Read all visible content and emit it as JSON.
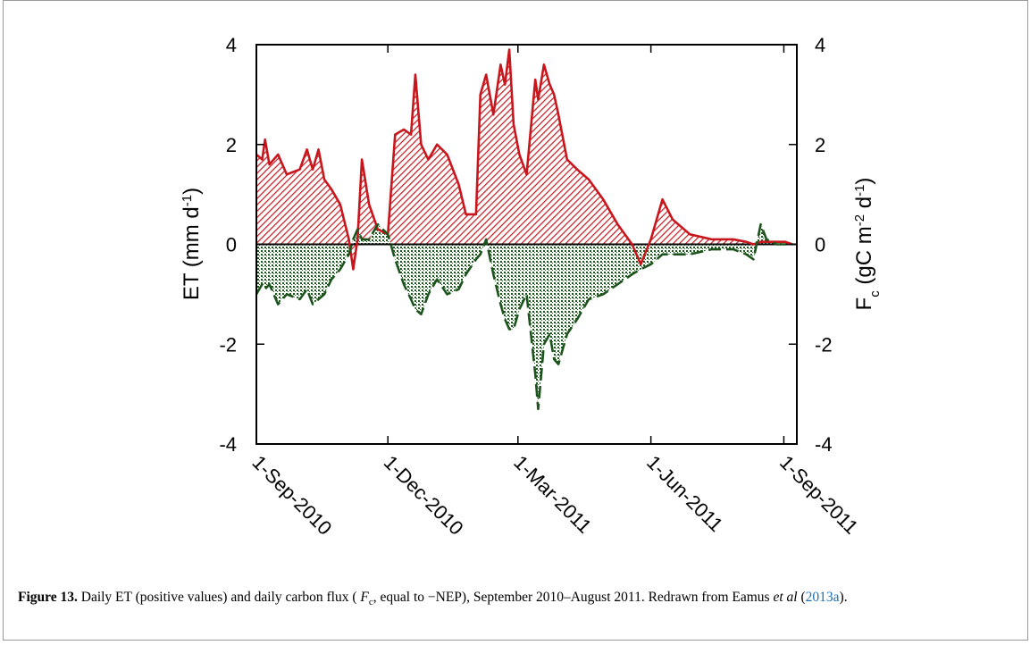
{
  "chart_data": {
    "type": "area-line",
    "y_label": [
      "ET (mm d",
      "-1",
      ")"
    ],
    "y2_label": [
      "F",
      "c",
      " (gC m",
      "-2",
      " d",
      "-1",
      ")"
    ],
    "x": [
      "2010-09-01",
      "2010-09-05",
      "2010-09-07",
      "2010-09-10",
      "2010-09-16",
      "2010-09-22",
      "2010-10-01",
      "2010-10-06",
      "2010-10-10",
      "2010-10-14",
      "2010-10-18",
      "2010-10-23",
      "2010-10-29",
      "2010-11-04",
      "2010-11-07",
      "2010-11-10",
      "2010-11-13",
      "2010-11-18",
      "2010-11-24",
      "2010-12-01",
      "2010-12-06",
      "2010-12-12",
      "2010-12-17",
      "2010-12-20",
      "2010-12-24",
      "2010-12-29",
      "2011-01-04",
      "2011-01-11",
      "2011-01-19",
      "2011-01-24",
      "2011-01-31",
      "2011-02-03",
      "2011-02-07",
      "2011-02-12",
      "2011-02-17",
      "2011-02-20",
      "2011-02-23",
      "2011-02-26",
      "2011-03-02",
      "2011-03-07",
      "2011-03-13",
      "2011-03-15",
      "2011-03-19",
      "2011-03-23",
      "2011-03-26",
      "2011-03-29",
      "2011-04-04",
      "2011-04-11",
      "2011-04-19",
      "2011-04-29",
      "2011-05-09",
      "2011-05-19",
      "2011-05-25",
      "2011-06-01",
      "2011-06-09",
      "2011-06-16",
      "2011-06-28",
      "2011-07-13",
      "2011-07-28",
      "2011-08-06",
      "2011-08-11",
      "2011-08-16",
      "2011-08-20",
      "2011-08-27",
      "2011-09-02",
      "2011-09-07"
    ],
    "series": [
      {
        "name": "ET",
        "color": "#c8161d",
        "linestyle": "solid",
        "fill": "hatch-red",
        "values": [
          1.8,
          1.7,
          2.1,
          1.6,
          1.8,
          1.4,
          1.5,
          1.9,
          1.5,
          1.9,
          1.3,
          1.1,
          0.8,
          0.1,
          -0.5,
          0.1,
          1.7,
          0.8,
          0.3,
          0.2,
          2.2,
          2.3,
          2.2,
          3.4,
          2.0,
          1.7,
          2.0,
          1.8,
          1.2,
          0.6,
          0.6,
          3.0,
          3.4,
          2.6,
          3.6,
          3.2,
          3.9,
          2.4,
          1.8,
          1.4,
          3.3,
          2.9,
          3.6,
          3.2,
          3.0,
          2.6,
          1.7,
          1.5,
          1.3,
          0.9,
          0.4,
          0.0,
          -0.4,
          0.1,
          0.9,
          0.5,
          0.2,
          0.1,
          0.1,
          0.05,
          0.0,
          0.05,
          0.05,
          0.05,
          0.05,
          0.0
        ]
      },
      {
        "name": "Fc",
        "color": "#1d531d",
        "linestyle": "dashed",
        "fill": "dots-green",
        "axis": "y2",
        "values": [
          -1.0,
          -0.8,
          -0.9,
          -0.8,
          -1.2,
          -1.0,
          -1.1,
          -0.9,
          -1.2,
          -1.1,
          -1.0,
          -0.7,
          -0.5,
          -0.2,
          0.1,
          0.3,
          0.1,
          0.1,
          0.4,
          0.2,
          -0.3,
          -0.8,
          -1.1,
          -1.3,
          -1.4,
          -1.0,
          -0.7,
          -1.0,
          -0.9,
          -0.6,
          -0.3,
          -0.2,
          0.1,
          -0.6,
          -1.2,
          -1.5,
          -1.7,
          -1.7,
          -1.3,
          -1.0,
          -2.6,
          -3.3,
          -2.0,
          -1.8,
          -2.3,
          -2.4,
          -1.8,
          -1.5,
          -1.1,
          -1.0,
          -0.8,
          -0.6,
          -0.5,
          -0.4,
          -0.2,
          -0.2,
          -0.2,
          -0.1,
          -0.1,
          -0.2,
          -0.3,
          0.4,
          0.1,
          0.0,
          0.0,
          0.0
        ]
      }
    ],
    "xlim": [
      "2010-09-01",
      "2011-09-10"
    ],
    "xticks": [
      {
        "value": "2010-09-01",
        "label": "1-Sep-2010"
      },
      {
        "value": "2010-12-01",
        "label": "1-Dec-2010"
      },
      {
        "value": "2011-03-01",
        "label": "1-Mar-2011"
      },
      {
        "value": "2011-06-01",
        "label": "1-Jun-2011"
      },
      {
        "value": "2011-09-01",
        "label": "1-Sep-2011"
      }
    ],
    "ylim": [
      -4,
      4
    ],
    "yticks": [
      -4,
      -2,
      0,
      2,
      4
    ],
    "y2lim": [
      -4,
      4
    ],
    "y2ticks": [
      -4,
      -2,
      0,
      2,
      4
    ],
    "grid": false
  },
  "caption": {
    "label": "Figure 13.",
    "parts": [
      "Daily ET (positive values) and daily carbon flux ( ",
      "F",
      "c",
      ", equal to −NEP), September 2010–August 2011. Redrawn from Eamus ",
      "et al",
      " (",
      "2013a",
      ")."
    ]
  }
}
